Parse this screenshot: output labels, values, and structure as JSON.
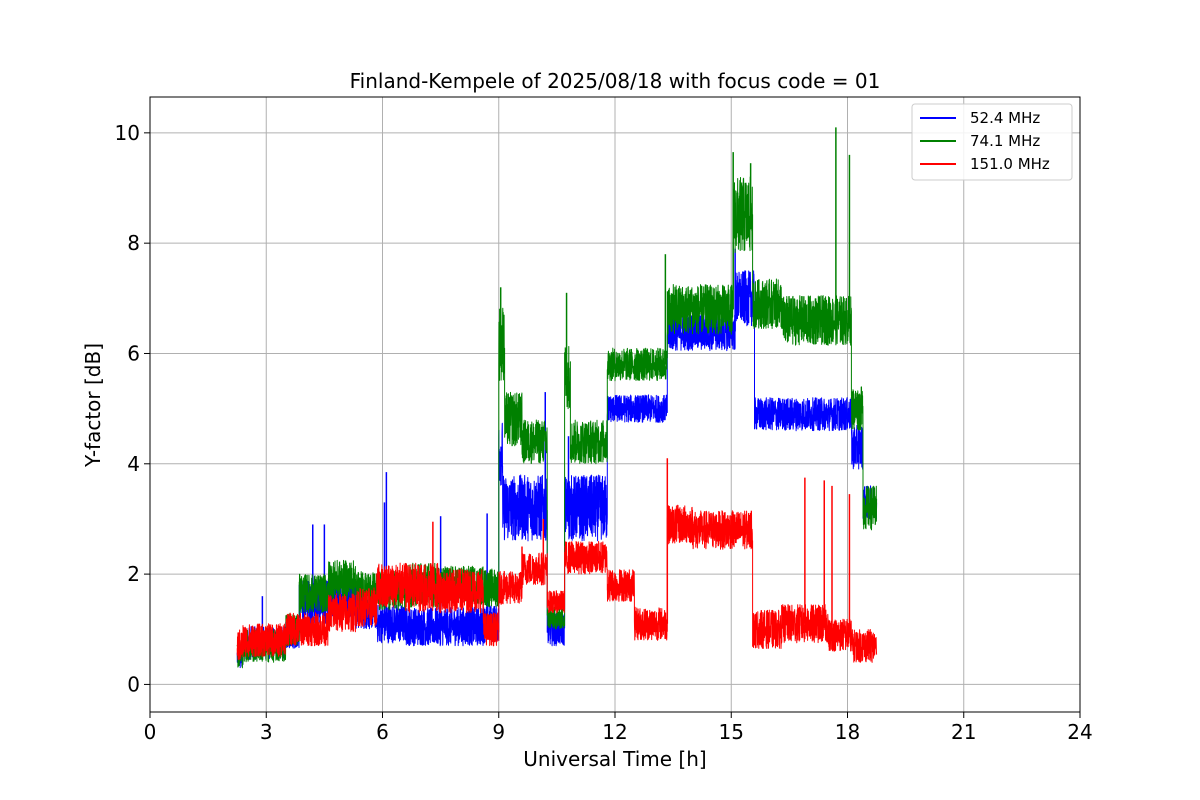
{
  "chart_data": {
    "type": "line",
    "title": "Finland-Kempele of 2025/08/18 with focus code = 01",
    "xlabel": "Universal Time [h]",
    "ylabel": "Y-factor [dB]",
    "xlim": [
      0,
      24
    ],
    "ylim": [
      -0.5,
      10.65
    ],
    "xticks": [
      0,
      3,
      6,
      9,
      12,
      15,
      18,
      21,
      24
    ],
    "yticks": [
      0,
      2,
      4,
      6,
      8,
      10
    ],
    "grid": true,
    "legend_position": "top-right",
    "series": [
      {
        "name": " 52.4 MHz",
        "color": "#0000ff",
        "segments": [
          [
            2.25,
            2.4,
            0.5,
            0.25
          ],
          [
            2.4,
            3.5,
            0.75,
            0.3
          ],
          [
            3.5,
            3.85,
            0.95,
            0.3
          ],
          [
            3.85,
            4.6,
            1.5,
            0.4
          ],
          [
            4.6,
            5.3,
            1.6,
            0.4
          ],
          [
            5.3,
            5.85,
            1.35,
            0.35
          ],
          [
            5.85,
            6.6,
            1.1,
            0.35
          ],
          [
            6.6,
            7.5,
            1.05,
            0.35
          ],
          [
            7.5,
            8.6,
            1.05,
            0.35
          ],
          [
            8.6,
            9.0,
            1.1,
            0.35
          ],
          [
            9.0,
            9.1,
            4.2,
            0.6
          ],
          [
            9.1,
            10.25,
            3.2,
            0.6
          ],
          [
            10.25,
            10.7,
            1.0,
            0.3
          ],
          [
            10.7,
            11.8,
            3.2,
            0.6
          ],
          [
            11.8,
            13.35,
            5.0,
            0.25
          ],
          [
            13.35,
            15.1,
            6.4,
            0.35
          ],
          [
            15.1,
            15.6,
            7.0,
            0.5
          ],
          [
            15.6,
            18.1,
            4.9,
            0.3
          ],
          [
            18.1,
            18.4,
            4.3,
            0.4
          ],
          [
            18.4,
            18.75,
            3.3,
            0.3
          ]
        ],
        "spikes": [
          [
            2.9,
            1.6
          ],
          [
            4.2,
            2.9
          ],
          [
            4.5,
            2.9
          ],
          [
            6.1,
            3.85
          ],
          [
            6.05,
            3.3
          ],
          [
            7.5,
            3.05
          ],
          [
            8.7,
            3.1
          ],
          [
            10.2,
            5.3
          ],
          [
            10.8,
            4.5
          ],
          [
            15.1,
            7.9
          ]
        ]
      },
      {
        "name": " 74.1 MHz",
        "color": "#008000",
        "segments": [
          [
            2.25,
            2.4,
            0.55,
            0.25
          ],
          [
            2.4,
            3.5,
            0.7,
            0.3
          ],
          [
            3.5,
            3.85,
            1.0,
            0.3
          ],
          [
            3.85,
            4.6,
            1.65,
            0.35
          ],
          [
            4.6,
            5.3,
            1.9,
            0.35
          ],
          [
            5.3,
            5.85,
            1.7,
            0.35
          ],
          [
            5.85,
            6.6,
            1.7,
            0.35
          ],
          [
            6.6,
            7.5,
            1.8,
            0.4
          ],
          [
            7.5,
            8.6,
            1.8,
            0.35
          ],
          [
            8.6,
            9.0,
            1.75,
            0.35
          ],
          [
            9.0,
            9.15,
            6.2,
            0.7
          ],
          [
            9.15,
            9.6,
            4.8,
            0.5
          ],
          [
            9.6,
            10.25,
            4.4,
            0.4
          ],
          [
            10.25,
            10.7,
            1.2,
            0.2
          ],
          [
            10.7,
            10.85,
            5.6,
            0.6
          ],
          [
            10.85,
            11.8,
            4.4,
            0.4
          ],
          [
            11.8,
            13.35,
            5.8,
            0.3
          ],
          [
            13.35,
            15.05,
            6.8,
            0.45
          ],
          [
            15.05,
            15.55,
            8.5,
            0.7
          ],
          [
            15.55,
            16.3,
            6.9,
            0.45
          ],
          [
            16.3,
            18.1,
            6.6,
            0.45
          ],
          [
            18.1,
            18.4,
            5.0,
            0.4
          ],
          [
            18.4,
            18.75,
            3.2,
            0.4
          ]
        ],
        "spikes": [
          [
            9.05,
            7.2
          ],
          [
            10.75,
            7.1
          ],
          [
            13.3,
            7.8
          ],
          [
            15.05,
            9.65
          ],
          [
            17.7,
            10.1
          ],
          [
            18.05,
            9.6
          ],
          [
            15.5,
            9.45
          ]
        ]
      },
      {
        "name": "151.0 MHz",
        "color": "#ff0000",
        "segments": [
          [
            2.25,
            2.4,
            0.7,
            0.3
          ],
          [
            2.4,
            3.5,
            0.8,
            0.3
          ],
          [
            3.5,
            3.85,
            1.0,
            0.3
          ],
          [
            3.85,
            4.6,
            1.0,
            0.3
          ],
          [
            4.6,
            5.3,
            1.3,
            0.35
          ],
          [
            5.3,
            5.85,
            1.4,
            0.35
          ],
          [
            5.85,
            6.6,
            1.8,
            0.4
          ],
          [
            6.6,
            7.5,
            1.75,
            0.45
          ],
          [
            7.5,
            8.6,
            1.7,
            0.4
          ],
          [
            8.6,
            9.0,
            1.0,
            0.3
          ],
          [
            9.0,
            9.6,
            1.75,
            0.3
          ],
          [
            9.6,
            10.25,
            2.1,
            0.3
          ],
          [
            10.25,
            10.7,
            1.5,
            0.2
          ],
          [
            10.7,
            11.8,
            2.3,
            0.3
          ],
          [
            11.8,
            12.5,
            1.8,
            0.3
          ],
          [
            12.5,
            13.35,
            1.1,
            0.3
          ],
          [
            13.35,
            14.0,
            2.9,
            0.35
          ],
          [
            14.0,
            15.55,
            2.8,
            0.35
          ],
          [
            15.55,
            16.3,
            1.0,
            0.35
          ],
          [
            16.3,
            17.5,
            1.1,
            0.35
          ],
          [
            17.5,
            18.1,
            0.9,
            0.3
          ],
          [
            18.1,
            18.75,
            0.7,
            0.3
          ]
        ],
        "spikes": [
          [
            7.3,
            2.95
          ],
          [
            9.6,
            2.5
          ],
          [
            10.15,
            3.0
          ],
          [
            13.35,
            4.1
          ],
          [
            17.4,
            3.7
          ],
          [
            16.9,
            3.75
          ],
          [
            17.6,
            3.6
          ],
          [
            18.05,
            3.45
          ]
        ]
      }
    ]
  }
}
